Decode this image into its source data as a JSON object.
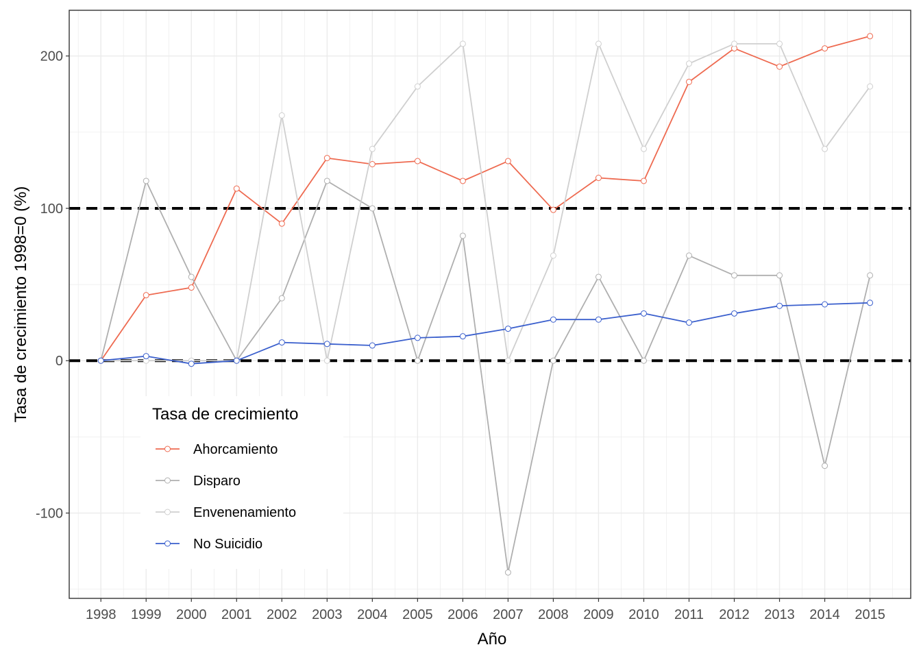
{
  "chart_data": {
    "type": "line",
    "title": "",
    "xlabel": "Año",
    "ylabel": "Tasa de crecimiento 1998=0 (%)",
    "x": [
      1998,
      1999,
      2000,
      2001,
      2002,
      2003,
      2004,
      2005,
      2006,
      2007,
      2008,
      2009,
      2010,
      2011,
      2012,
      2013,
      2014,
      2015
    ],
    "xlim": [
      1997.3,
      2015.9
    ],
    "ylim": [
      -156,
      230
    ],
    "y_ticks": [
      -100,
      0,
      100,
      200
    ],
    "reference_lines": [
      0,
      100
    ],
    "grid": true,
    "legend": {
      "title": "Tasa de crecimiento",
      "placement": "bottom-left inside"
    },
    "series": [
      {
        "name": "Ahorcamiento",
        "color": "#EE6A50",
        "values": [
          0,
          43,
          48,
          113,
          90,
          133,
          129,
          131,
          118,
          131,
          99,
          120,
          118,
          183,
          205,
          193,
          205,
          213
        ]
      },
      {
        "name": "Disparo",
        "color": "#AFAFAF",
        "values": [
          0,
          118,
          55,
          0,
          41,
          118,
          100,
          0,
          82,
          -139,
          0,
          55,
          0,
          69,
          56,
          56,
          -69,
          56
        ]
      },
      {
        "name": "Envenenamiento",
        "color": "#CFCFCF",
        "values": [
          0,
          0,
          0,
          0,
          161,
          0,
          139,
          180,
          208,
          0,
          69,
          208,
          139,
          195,
          208,
          208,
          139,
          180
        ]
      },
      {
        "name": "No Suicidio",
        "color": "#3A5FCD",
        "values": [
          0,
          3,
          -2,
          0,
          12,
          11,
          10,
          15,
          16,
          21,
          27,
          27,
          31,
          25,
          31,
          36,
          37,
          38
        ]
      }
    ]
  }
}
